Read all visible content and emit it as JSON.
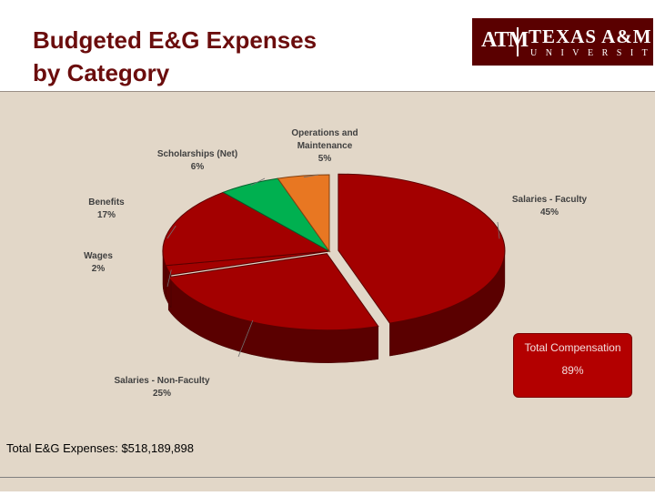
{
  "slide": {
    "title_line_1": "Budgeted E&G Expenses",
    "title_line_2": "by Category",
    "total_text": "Total E&G Expenses: $518,189,898"
  },
  "logo": {
    "mark": "ATM",
    "name": "TEXAS A&M",
    "sub": "UNIVERSITY"
  },
  "callout": {
    "label": "Total Compensation",
    "value": "89%"
  },
  "colors": {
    "maroon": "#a30000",
    "green": "#00b050",
    "orange": "#e87722"
  },
  "chart_data": {
    "type": "pie",
    "title": "",
    "slices": [
      {
        "category": "Salaries - Faculty",
        "value": 45,
        "label": "45%",
        "color": "#a30000"
      },
      {
        "category": "Salaries - Non-Faculty",
        "value": 25,
        "label": "25%",
        "color": "#a30000"
      },
      {
        "category": "Wages",
        "value": 2,
        "label": "2%",
        "color": "#a30000"
      },
      {
        "category": "Benefits",
        "value": 17,
        "label": "17%",
        "color": "#a30000"
      },
      {
        "category": "Scholarships (Net)",
        "value": 6,
        "label": "6%",
        "color": "#00b050"
      },
      {
        "category": "Operations and Maintenance",
        "value": 5,
        "label": "5%",
        "color": "#e87722"
      }
    ]
  }
}
